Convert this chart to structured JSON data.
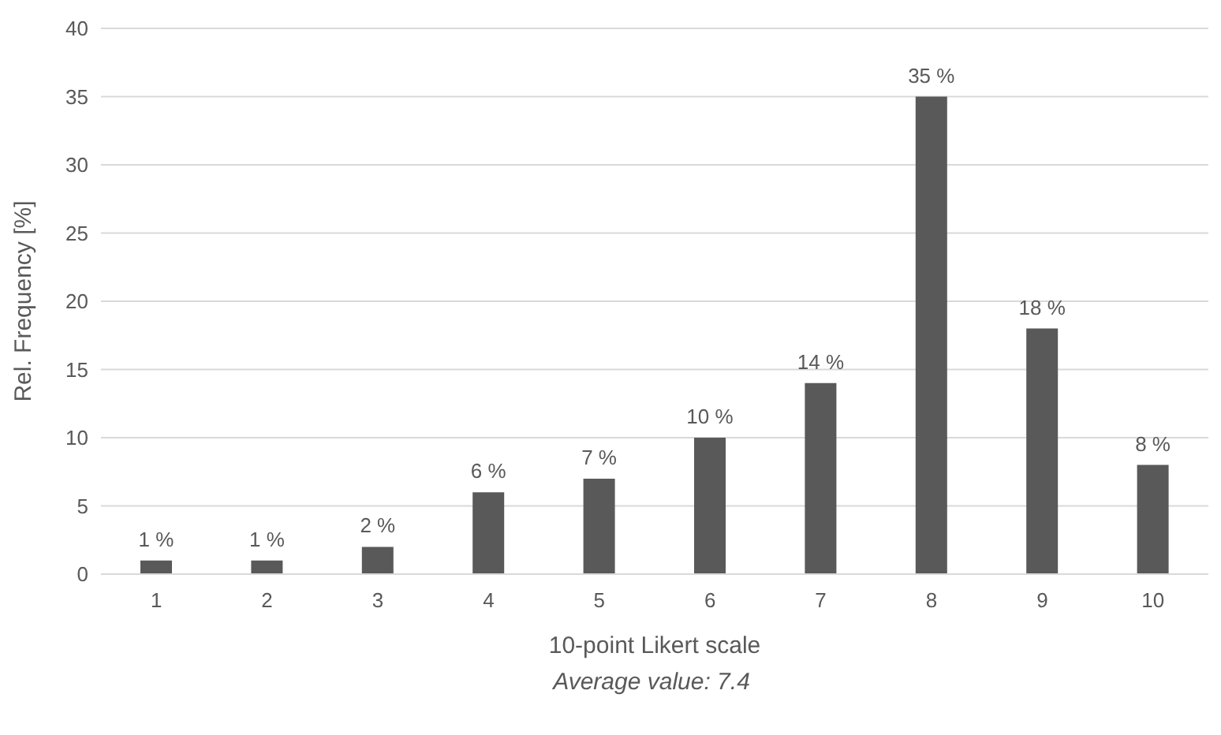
{
  "chart_data": {
    "type": "bar",
    "xlabel": "10-point Likert scale",
    "ylabel": "Rel. Frequency [%]",
    "annotations": [
      "Average value: 7.4"
    ],
    "categories": [
      "1",
      "2",
      "3",
      "4",
      "5",
      "6",
      "7",
      "8",
      "9",
      "10"
    ],
    "values": [
      1,
      1,
      2,
      6,
      7,
      10,
      14,
      35,
      18,
      8
    ],
    "value_labels": [
      "1 %",
      "1 %",
      "2 %",
      "6 %",
      "7 %",
      "10 %",
      "14 %",
      "35 %",
      "18 %",
      "8 %"
    ],
    "color": "#595959",
    "ylim": [
      0,
      40
    ],
    "yticks": [
      0,
      5,
      10,
      15,
      20,
      25,
      30,
      35,
      40
    ],
    "grid": "y",
    "legend": false
  }
}
